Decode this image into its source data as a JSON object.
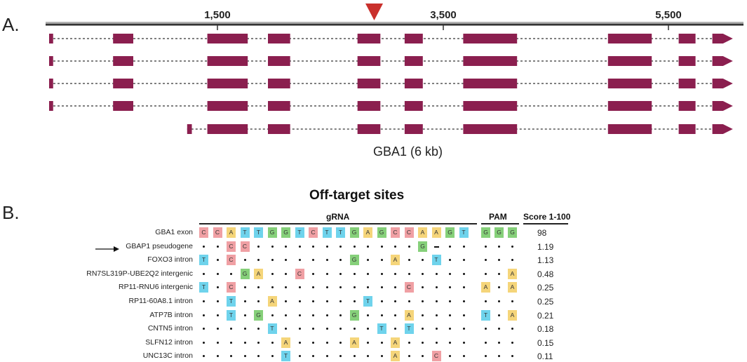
{
  "panel_a": {
    "label": "A.",
    "gene_label": "GBA1 (6 kb)",
    "ticks": [
      "1,500",
      "3,500",
      "5,500"
    ],
    "cut_site_color": "#c9302c",
    "exon_color": "#8b1f4f",
    "transcripts": [
      {
        "name": "transcript-1",
        "exons": [
          [
            0,
            0.06
          ],
          [
            0.95,
            1.25
          ],
          [
            2.35,
            2.95
          ],
          [
            3.25,
            3.58
          ],
          [
            4.58,
            4.92
          ],
          [
            5.28,
            5.55
          ],
          [
            6.15,
            6.95
          ],
          [
            8.3,
            8.95
          ],
          [
            9.35,
            9.6
          ],
          [
            9.85,
            10.05
          ]
        ]
      },
      {
        "name": "transcript-2",
        "exons": [
          [
            0,
            0.06
          ],
          [
            0.95,
            1.25
          ],
          [
            2.35,
            2.95
          ],
          [
            3.25,
            3.58
          ],
          [
            4.58,
            4.92
          ],
          [
            5.28,
            5.55
          ],
          [
            6.15,
            6.95
          ],
          [
            8.3,
            8.95
          ],
          [
            9.35,
            9.6
          ],
          [
            9.85,
            10.05
          ]
        ]
      },
      {
        "name": "transcript-3",
        "exons": [
          [
            0,
            0.06
          ],
          [
            0.95,
            1.25
          ],
          [
            2.35,
            2.95
          ],
          [
            3.25,
            3.58
          ],
          [
            4.58,
            4.92
          ],
          [
            5.28,
            5.55
          ],
          [
            6.15,
            6.95
          ],
          [
            8.3,
            8.95
          ],
          [
            9.35,
            9.6
          ],
          [
            9.85,
            10.05
          ]
        ]
      },
      {
        "name": "transcript-4",
        "exons": [
          [
            0,
            0.06
          ],
          [
            0.95,
            1.25
          ],
          [
            2.35,
            2.95
          ],
          [
            3.25,
            3.58
          ],
          [
            4.58,
            4.92
          ],
          [
            5.28,
            5.55
          ],
          [
            6.15,
            6.95
          ],
          [
            8.3,
            8.95
          ],
          [
            9.35,
            9.6
          ],
          [
            9.85,
            10.05
          ]
        ]
      },
      {
        "name": "transcript-5",
        "exons": [
          [
            2.05,
            2.12
          ],
          [
            2.35,
            2.95
          ],
          [
            3.25,
            3.58
          ],
          [
            4.58,
            4.92
          ],
          [
            5.28,
            5.55
          ],
          [
            6.15,
            6.95
          ],
          [
            8.3,
            8.95
          ],
          [
            9.35,
            9.6
          ],
          [
            9.85,
            10.05
          ]
        ]
      }
    ]
  },
  "panel_b": {
    "label": "B.",
    "title": "Off-target sites",
    "grna_label": "gRNA",
    "pam_label": "PAM",
    "score_label": "Score 1-100",
    "base_colors": {
      "C": "#f0a0a4",
      "A": "#f5d57a",
      "T": "#6fd3ec",
      "G": "#86d07a"
    },
    "rows": [
      {
        "label": "GBA1 exon",
        "score": "98",
        "arrow": false,
        "seq": [
          "C",
          "C",
          "A",
          "T",
          "T",
          "G",
          "G",
          "T",
          "C",
          "T",
          "T",
          "G",
          "A",
          "G",
          "C",
          "C",
          "A",
          "A",
          "G",
          "T"
        ],
        "pam": [
          "G",
          "G",
          "G"
        ]
      },
      {
        "label": "GBAP1 pseudogene",
        "score": "1.19",
        "arrow": true,
        "seq": [
          ".",
          ".",
          "C",
          "C",
          ".",
          ".",
          ".",
          ".",
          ".",
          ".",
          ".",
          ".",
          ".",
          ".",
          ".",
          ".",
          "G",
          "-",
          ".",
          "."
        ],
        "pam": [
          ".",
          ".",
          "."
        ]
      },
      {
        "label": "FOXO3 intron",
        "score": "1.13",
        "arrow": false,
        "seq": [
          "T",
          ".",
          "C",
          ".",
          ".",
          ".",
          ".",
          ".",
          ".",
          ".",
          ".",
          "G",
          ".",
          ".",
          "A",
          ".",
          ".",
          "T",
          ".",
          "."
        ],
        "pam": [
          ".",
          ".",
          "."
        ]
      },
      {
        "label": "RN7SL319P-UBE2Q2 intergenic",
        "score": "0.48",
        "arrow": false,
        "seq": [
          ".",
          ".",
          ".",
          "G",
          "A",
          ".",
          ".",
          "C",
          ".",
          ".",
          ".",
          ".",
          ".",
          ".",
          ".",
          ".",
          ".",
          ".",
          ".",
          "."
        ],
        "pam": [
          ".",
          ".",
          "A"
        ]
      },
      {
        "label": "RP11-RNU6 intergenic",
        "score": "0.25",
        "arrow": false,
        "seq": [
          "T",
          ".",
          "C",
          ".",
          ".",
          ".",
          ".",
          ".",
          ".",
          ".",
          ".",
          ".",
          ".",
          ".",
          ".",
          "C",
          ".",
          ".",
          ".",
          "."
        ],
        "pam": [
          "A",
          ".",
          "A"
        ]
      },
      {
        "label": "RP11-60A8.1 intron",
        "score": "0.25",
        "arrow": false,
        "seq": [
          ".",
          ".",
          "T",
          ".",
          ".",
          "A",
          ".",
          ".",
          ".",
          ".",
          ".",
          ".",
          "T",
          ".",
          ".",
          ".",
          ".",
          ".",
          ".",
          "."
        ],
        "pam": [
          ".",
          ".",
          "."
        ]
      },
      {
        "label": "ATP7B intron",
        "score": "0.21",
        "arrow": false,
        "seq": [
          ".",
          ".",
          "T",
          ".",
          "G",
          ".",
          ".",
          ".",
          ".",
          ".",
          ".",
          "G",
          ".",
          ".",
          ".",
          "A",
          ".",
          ".",
          ".",
          "."
        ],
        "pam": [
          "T",
          ".",
          "A"
        ]
      },
      {
        "label": "CNTN5 intron",
        "score": "0.18",
        "arrow": false,
        "seq": [
          ".",
          ".",
          ".",
          ".",
          ".",
          "T",
          ".",
          ".",
          ".",
          ".",
          ".",
          ".",
          ".",
          "T",
          ".",
          "T",
          ".",
          ".",
          ".",
          "."
        ],
        "pam": [
          ".",
          ".",
          "."
        ]
      },
      {
        "label": "SLFN12 intron",
        "score": "0.15",
        "arrow": false,
        "seq": [
          ".",
          ".",
          ".",
          ".",
          ".",
          ".",
          "A",
          ".",
          ".",
          ".",
          ".",
          "A",
          ".",
          ".",
          "A",
          ".",
          ".",
          ".",
          ".",
          "."
        ],
        "pam": [
          ".",
          ".",
          "."
        ]
      },
      {
        "label": "UNC13C intron",
        "score": "0.11",
        "arrow": false,
        "seq": [
          ".",
          ".",
          ".",
          ".",
          ".",
          ".",
          "T",
          ".",
          ".",
          ".",
          ".",
          ".",
          ".",
          ".",
          "A",
          ".",
          ".",
          "C",
          ".",
          "."
        ],
        "pam": [
          ".",
          ".",
          "."
        ]
      }
    ]
  }
}
